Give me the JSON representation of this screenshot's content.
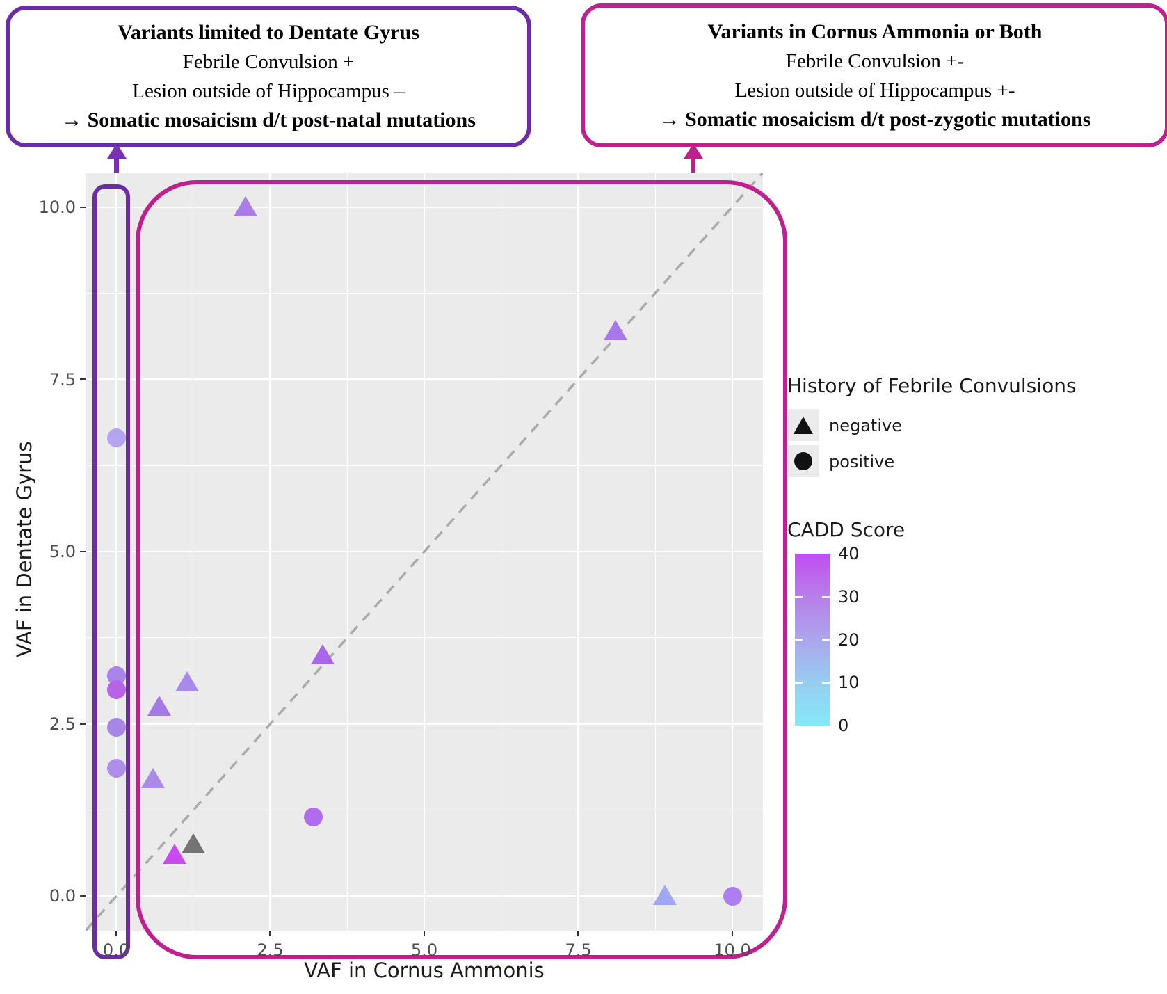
{
  "annotations": {
    "left_box": {
      "title": "Variants limited to Dentate Gyrus",
      "line1": "Febrile Convulsion +",
      "line2": "Lesion outside of Hippocampus –",
      "conclusion": "→ Somatic mosaicism d/t post-natal mutations",
      "border_color": "#6B2DA5"
    },
    "right_box": {
      "title": "Variants in Cornus Ammonia or Both",
      "line1": "Febrile Convulsion +-",
      "line2": "Lesion outside of Hippocampus +-",
      "conclusion": "→ Somatic mosaicism d/t post-zygotic mutations",
      "border_color": "#BE208E"
    }
  },
  "chart_data": {
    "type": "scatter",
    "xlabel": "VAF in Cornus Ammonis",
    "ylabel": "VAF in Dentate Gyrus",
    "xlim": [
      -0.5,
      10.5
    ],
    "ylim": [
      -0.5,
      10.5
    ],
    "x_tick_values": [
      0,
      2.5,
      5,
      7.5,
      10
    ],
    "x_tick_labels": [
      "0.0",
      "2.5",
      "5.0",
      "7.5",
      "10.0"
    ],
    "y_tick_values": [
      0,
      2.5,
      5,
      7.5,
      10
    ],
    "y_tick_labels": [
      "0.0",
      "2.5",
      "5.0",
      "7.5",
      "10.0"
    ],
    "grid": "major and minor white gridlines on gray panel",
    "reference_line": "dashed gray identity line y = x",
    "panel_background": "#EBEBEB",
    "points": [
      {
        "x": 2.1,
        "y": 10.0,
        "shape": "triangle",
        "febrile_convulsions": "negative",
        "color": "#A87DE9"
      },
      {
        "x": 8.1,
        "y": 8.2,
        "shape": "triangle",
        "febrile_convulsions": "negative",
        "color": "#A678EB"
      },
      {
        "x": 0.0,
        "y": 6.65,
        "shape": "circle",
        "febrile_convulsions": "positive",
        "color": "#B5A4F2"
      },
      {
        "x": 1.15,
        "y": 3.1,
        "shape": "triangle",
        "febrile_convulsions": "negative",
        "color": "#A98AEC"
      },
      {
        "x": 0.7,
        "y": 2.75,
        "shape": "triangle",
        "febrile_convulsions": "negative",
        "color": "#A47BE6"
      },
      {
        "x": 0.0,
        "y": 3.2,
        "shape": "circle",
        "febrile_convulsions": "positive",
        "color": "#A984EA"
      },
      {
        "x": 0.0,
        "y": 3.0,
        "shape": "circle",
        "febrile_convulsions": "positive",
        "color": "#B763E8"
      },
      {
        "x": 0.0,
        "y": 2.45,
        "shape": "circle",
        "febrile_convulsions": "positive",
        "color": "#A886E8"
      },
      {
        "x": 0.0,
        "y": 1.85,
        "shape": "circle",
        "febrile_convulsions": "positive",
        "color": "#AE8EE8"
      },
      {
        "x": 0.6,
        "y": 1.7,
        "shape": "triangle",
        "febrile_convulsions": "negative",
        "color": "#AA8BE6"
      },
      {
        "x": 3.35,
        "y": 3.5,
        "shape": "triangle",
        "febrile_convulsions": "negative",
        "color": "#A866E8"
      },
      {
        "x": 3.2,
        "y": 1.15,
        "shape": "circle",
        "febrile_convulsions": "positive",
        "color": "#B16BEF"
      },
      {
        "x": 0.95,
        "y": 0.6,
        "shape": "triangle",
        "febrile_convulsions": "negative",
        "color": "#C94BF0"
      },
      {
        "x": 1.25,
        "y": 0.75,
        "shape": "triangle",
        "febrile_convulsions": "negative",
        "color": "#747474"
      },
      {
        "x": 8.9,
        "y": 0.0,
        "shape": "triangle",
        "febrile_convulsions": "negative",
        "color": "#9FA8F0"
      },
      {
        "x": 10.0,
        "y": 0.0,
        "shape": "circle",
        "febrile_convulsions": "positive",
        "color": "#AC7EF0"
      }
    ]
  },
  "legends": {
    "shape_legend": {
      "title": "History of Febrile Convulsions",
      "items": [
        {
          "shape": "triangle",
          "label": "negative"
        },
        {
          "shape": "circle",
          "label": "positive"
        }
      ]
    },
    "color_legend": {
      "title": "CADD Score",
      "tick_labels": [
        "40",
        "30",
        "20",
        "10",
        "0"
      ],
      "high_color": "#C14DF2",
      "low_color": "#85E8F8"
    }
  },
  "colors": {
    "purple_accent": "#6B2DA5",
    "magenta_accent": "#BE208E",
    "dashed_line": "#ABABAB"
  }
}
